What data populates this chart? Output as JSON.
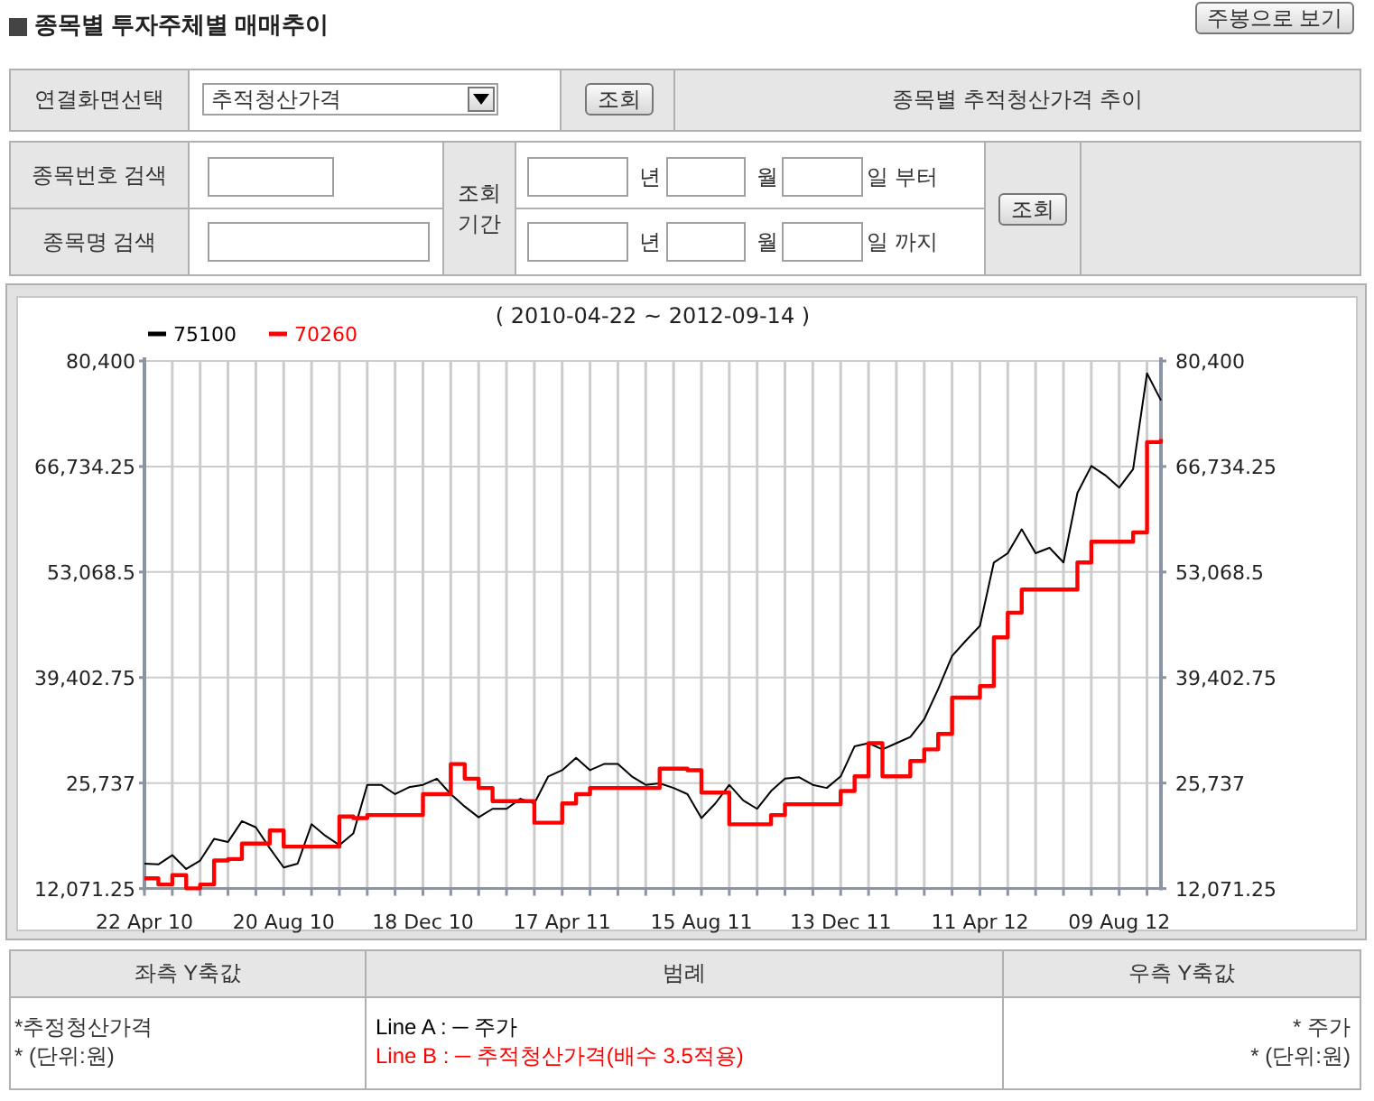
{
  "chart_data": {
    "type": "line",
    "title": "( 2010-04-22 ~ 2012-09-14 )",
    "x": [
      "2010-04-22",
      "2010-05-04",
      "2010-05-16",
      "2010-05-28",
      "2010-06-09",
      "2010-06-21",
      "2010-07-03",
      "2010-07-15",
      "2010-07-27",
      "2010-08-08",
      "2010-08-20",
      "2010-09-01",
      "2010-09-13",
      "2010-09-25",
      "2010-10-07",
      "2010-10-19",
      "2010-10-31",
      "2010-11-12",
      "2010-11-24",
      "2010-12-06",
      "2010-12-18",
      "2010-12-30",
      "2011-01-11",
      "2011-01-23",
      "2011-02-04",
      "2011-02-16",
      "2011-02-28",
      "2011-03-12",
      "2011-03-24",
      "2011-04-05",
      "2011-04-17",
      "2011-04-29",
      "2011-05-11",
      "2011-05-23",
      "2011-06-04",
      "2011-06-16",
      "2011-06-28",
      "2011-07-10",
      "2011-07-22",
      "2011-08-03",
      "2011-08-15",
      "2011-08-27",
      "2011-09-08",
      "2011-09-20",
      "2011-10-02",
      "2011-10-14",
      "2011-10-26",
      "2011-11-07",
      "2011-11-19",
      "2011-12-01",
      "2011-12-13",
      "2011-12-25",
      "2012-01-06",
      "2012-01-18",
      "2012-01-30",
      "2012-02-11",
      "2012-02-23",
      "2012-03-06",
      "2012-03-18",
      "2012-03-30",
      "2012-04-11",
      "2012-04-23",
      "2012-05-05",
      "2012-05-17",
      "2012-05-29",
      "2012-06-10",
      "2012-06-22",
      "2012-07-04",
      "2012-07-16",
      "2012-07-28",
      "2012-08-09",
      "2012-08-21",
      "2012-09-02",
      "2012-09-14"
    ],
    "series": [
      {
        "name": "75100",
        "color": "#000000",
        "values": [
          15300,
          15200,
          16400,
          14600,
          15700,
          18500,
          18100,
          20800,
          20000,
          17300,
          14800,
          15300,
          20400,
          18900,
          17700,
          19200,
          25500,
          25500,
          24300,
          25200,
          25500,
          26300,
          24300,
          22700,
          21300,
          22400,
          22400,
          23700,
          23100,
          26600,
          27400,
          29000,
          27400,
          28200,
          28200,
          26600,
          25500,
          25700,
          25100,
          24300,
          21200,
          23100,
          25500,
          23500,
          22400,
          24700,
          26300,
          26500,
          25500,
          25100,
          26600,
          30500,
          30900,
          30100,
          30900,
          31700,
          34000,
          37900,
          42200,
          44200,
          46100,
          54300,
          55500,
          58600,
          55500,
          56200,
          54300,
          63300,
          66800,
          65600,
          64000,
          66400,
          78800,
          75300
        ]
      },
      {
        "name": "70260",
        "color": "#ff0000",
        "type": "step",
        "values": [
          13400,
          12600,
          13800,
          12100,
          12600,
          15700,
          15900,
          17900,
          17900,
          19600,
          17500,
          17500,
          17500,
          17500,
          21400,
          21200,
          21600,
          21600,
          21600,
          21600,
          24300,
          24300,
          28200,
          26300,
          25100,
          23400,
          23400,
          23400,
          20600,
          20600,
          23100,
          24300,
          25100,
          25100,
          25100,
          25100,
          25100,
          27600,
          27600,
          27400,
          24500,
          24500,
          20400,
          20400,
          20400,
          21600,
          23000,
          23000,
          23000,
          23000,
          24700,
          26600,
          30900,
          26600,
          26600,
          28600,
          30100,
          32100,
          36800,
          36800,
          38300,
          44600,
          47800,
          50800,
          50800,
          50800,
          50800,
          54300,
          57000,
          57000,
          57000,
          58200,
          69900,
          70300
        ]
      }
    ],
    "xlim": [
      "2010-04-22",
      "2012-09-14"
    ],
    "xticks": [
      {
        "value": "2010-04-22",
        "label": "22 Apr 10"
      },
      {
        "value": "2010-05-16",
        "label": null
      },
      {
        "value": "2010-06-09",
        "label": null
      },
      {
        "value": "2010-07-03",
        "label": null
      },
      {
        "value": "2010-07-27",
        "label": null
      },
      {
        "value": "2010-08-20",
        "label": "20 Aug 10"
      },
      {
        "value": "2010-09-13",
        "label": null
      },
      {
        "value": "2010-10-07",
        "label": null
      },
      {
        "value": "2010-10-31",
        "label": null
      },
      {
        "value": "2010-11-24",
        "label": null
      },
      {
        "value": "2010-12-18",
        "label": "18 Dec 10"
      },
      {
        "value": "2011-01-11",
        "label": null
      },
      {
        "value": "2011-02-04",
        "label": null
      },
      {
        "value": "2011-02-28",
        "label": null
      },
      {
        "value": "2011-03-24",
        "label": null
      },
      {
        "value": "2011-04-17",
        "label": "17 Apr 11"
      },
      {
        "value": "2011-05-11",
        "label": null
      },
      {
        "value": "2011-06-04",
        "label": null
      },
      {
        "value": "2011-06-28",
        "label": null
      },
      {
        "value": "2011-07-22",
        "label": null
      },
      {
        "value": "2011-08-15",
        "label": "15 Aug 11"
      },
      {
        "value": "2011-09-08",
        "label": null
      },
      {
        "value": "2011-10-02",
        "label": null
      },
      {
        "value": "2011-10-26",
        "label": null
      },
      {
        "value": "2011-11-19",
        "label": null
      },
      {
        "value": "2011-12-13",
        "label": "13 Dec 11"
      },
      {
        "value": "2012-01-06",
        "label": null
      },
      {
        "value": "2012-01-30",
        "label": null
      },
      {
        "value": "2012-02-23",
        "label": null
      },
      {
        "value": "2012-03-18",
        "label": null
      },
      {
        "value": "2012-04-11",
        "label": "11 Apr 12"
      },
      {
        "value": "2012-05-05",
        "label": null
      },
      {
        "value": "2012-05-29",
        "label": null
      },
      {
        "value": "2012-06-22",
        "label": null
      },
      {
        "value": "2012-07-16",
        "label": null
      },
      {
        "value": "2012-08-09",
        "label": "09 Aug 12"
      },
      {
        "value": "2012-09-02",
        "label": null
      }
    ],
    "ylim": [
      12071.25,
      80400
    ],
    "yticks": [
      {
        "value": 12071.25,
        "label": "12,071.25"
      },
      {
        "value": 25737,
        "label": "25,737"
      },
      {
        "value": 39402.75,
        "label": "39,402.75"
      },
      {
        "value": 53068.5,
        "label": "53,068.5"
      },
      {
        "value": 66734.25,
        "label": "66,734.25"
      },
      {
        "value": 80400,
        "label": "80,400"
      }
    ],
    "y2lim": [
      12071.25,
      80400
    ],
    "y2ticks": [
      {
        "value": 12071.25,
        "label": "12,071.25"
      },
      {
        "value": 25737,
        "label": "25,737"
      },
      {
        "value": 39402.75,
        "label": "39,402.75"
      },
      {
        "value": 53068.5,
        "label": "53,068.5"
      },
      {
        "value": 66734.25,
        "label": "66,734.25"
      },
      {
        "value": 80400,
        "label": "80,400"
      }
    ],
    "grid": true,
    "legend": "top left",
    "annotations": [
      "종목별 투자주체별 매매추이",
      "주봉으로 보기",
      "연결화면선택",
      "추적청산가격",
      "조회",
      "종목별 추적청산가격 추이",
      "종목번호 검색",
      "종목명 검색",
      "조회 기간",
      "년",
      "월",
      "일 부터",
      "년",
      "월",
      "일 까지",
      "조회",
      "좌측 Y축값",
      "범례",
      "우측 Y축값",
      "*추정청산가격",
      "* (단위:원)",
      "Line A : ─ 주가",
      "Line B : ─ 추적청산가격(배수 3.5적용)",
      "* 주가",
      "* (단위:원)"
    ]
  }
}
